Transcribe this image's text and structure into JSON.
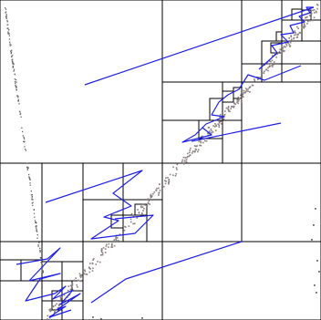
{
  "figure": {
    "description_kind": "quadtree spatial partition with point cloud and space-filling traversal path",
    "colors": {
      "background": "#ffffff",
      "cell_border": "#000000",
      "points": "#8b7f7f",
      "edge_points": "#666666",
      "path": "#1f1fe6"
    }
  }
}
